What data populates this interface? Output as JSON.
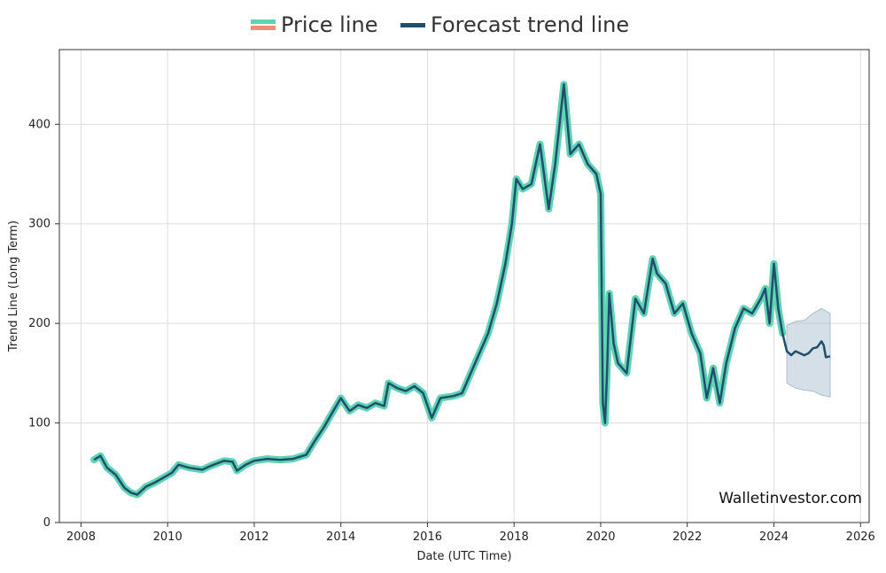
{
  "legend": {
    "price_label": "Price line",
    "forecast_label": "Forecast trend line"
  },
  "colors": {
    "price": "#5fd3b2",
    "price_alt": "#f08e74",
    "forecast": "#1f4e6e",
    "band": "#a9bfd0",
    "grid": "#dddddd",
    "axis": "#333333"
  },
  "watermark": "Walletinvestor.com",
  "chart_data": {
    "type": "line",
    "xlabel": "Date (UTC Time)",
    "ylabel": "Trend Line (Long Term)",
    "xlim": [
      2007.5,
      2026.2
    ],
    "ylim": [
      0,
      475
    ],
    "xticks": [
      2008,
      2010,
      2012,
      2014,
      2016,
      2018,
      2020,
      2022,
      2024,
      2026
    ],
    "yticks": [
      0,
      100,
      200,
      300,
      400
    ],
    "grid": true,
    "legend_position": "top-center",
    "series": [
      {
        "name": "Price line",
        "x": [
          2008.3,
          2008.45,
          2008.6,
          2008.8,
          2009.0,
          2009.15,
          2009.3,
          2009.5,
          2009.7,
          2009.9,
          2010.1,
          2010.25,
          2010.5,
          2010.8,
          2011.0,
          2011.3,
          2011.5,
          2011.6,
          2011.8,
          2012.0,
          2012.3,
          2012.6,
          2012.9,
          2013.2,
          2013.4,
          2013.6,
          2013.8,
          2014.0,
          2014.2,
          2014.4,
          2014.6,
          2014.8,
          2015.0,
          2015.1,
          2015.3,
          2015.5,
          2015.7,
          2015.9,
          2016.1,
          2016.3,
          2016.6,
          2016.8,
          2017.0,
          2017.2,
          2017.4,
          2017.6,
          2017.8,
          2017.95,
          2018.05,
          2018.2,
          2018.4,
          2018.6,
          2018.8,
          2018.95,
          2019.1,
          2019.15,
          2019.3,
          2019.5,
          2019.7,
          2019.9,
          2020.0,
          2020.05,
          2020.1,
          2020.15,
          2020.2,
          2020.3,
          2020.4,
          2020.6,
          2020.8,
          2021.0,
          2021.2,
          2021.3,
          2021.5,
          2021.7,
          2021.9,
          2022.1,
          2022.3,
          2022.45,
          2022.6,
          2022.75,
          2022.9,
          2023.1,
          2023.3,
          2023.5,
          2023.7,
          2023.8,
          2023.9,
          2024.0,
          2024.1,
          2024.2
        ],
        "y": [
          63,
          67,
          55,
          48,
          35,
          30,
          28,
          36,
          40,
          45,
          50,
          58,
          55,
          53,
          57,
          62,
          61,
          52,
          58,
          62,
          64,
          63,
          64,
          68,
          82,
          95,
          110,
          125,
          112,
          118,
          115,
          120,
          117,
          140,
          135,
          132,
          137,
          130,
          105,
          125,
          127,
          130,
          150,
          170,
          190,
          220,
          260,
          300,
          345,
          335,
          340,
          380,
          315,
          360,
          420,
          440,
          370,
          380,
          360,
          350,
          330,
          120,
          100,
          155,
          230,
          180,
          160,
          150,
          225,
          210,
          265,
          250,
          240,
          210,
          220,
          190,
          170,
          125,
          155,
          120,
          160,
          195,
          215,
          210,
          225,
          235,
          200,
          260,
          215,
          190
        ]
      },
      {
        "name": "Forecast trend line",
        "x": [
          2008.3,
          2008.45,
          2008.6,
          2008.8,
          2009.0,
          2009.15,
          2009.3,
          2009.5,
          2009.7,
          2009.9,
          2010.1,
          2010.25,
          2010.5,
          2010.8,
          2011.0,
          2011.3,
          2011.5,
          2011.6,
          2011.8,
          2012.0,
          2012.3,
          2012.6,
          2012.9,
          2013.2,
          2013.4,
          2013.6,
          2013.8,
          2014.0,
          2014.2,
          2014.4,
          2014.6,
          2014.8,
          2015.0,
          2015.1,
          2015.3,
          2015.5,
          2015.7,
          2015.9,
          2016.1,
          2016.3,
          2016.6,
          2016.8,
          2017.0,
          2017.2,
          2017.4,
          2017.6,
          2017.8,
          2017.95,
          2018.05,
          2018.2,
          2018.4,
          2018.6,
          2018.8,
          2018.95,
          2019.1,
          2019.15,
          2019.3,
          2019.5,
          2019.7,
          2019.9,
          2020.0,
          2020.05,
          2020.1,
          2020.15,
          2020.2,
          2020.3,
          2020.4,
          2020.6,
          2020.8,
          2021.0,
          2021.2,
          2021.3,
          2021.5,
          2021.7,
          2021.9,
          2022.1,
          2022.3,
          2022.45,
          2022.6,
          2022.75,
          2022.9,
          2023.1,
          2023.3,
          2023.5,
          2023.7,
          2023.8,
          2023.9,
          2024.0,
          2024.1,
          2024.2,
          2024.3,
          2024.4,
          2024.5,
          2024.6,
          2024.7,
          2024.8,
          2024.9,
          2025.0,
          2025.1,
          2025.15,
          2025.2,
          2025.3
        ],
        "y": [
          63,
          67,
          55,
          48,
          35,
          30,
          28,
          36,
          40,
          45,
          50,
          58,
          55,
          53,
          57,
          62,
          61,
          52,
          58,
          62,
          64,
          63,
          64,
          68,
          82,
          95,
          110,
          125,
          112,
          118,
          115,
          120,
          117,
          140,
          135,
          132,
          137,
          130,
          105,
          125,
          127,
          130,
          150,
          170,
          190,
          220,
          260,
          300,
          345,
          335,
          340,
          380,
          315,
          360,
          420,
          440,
          370,
          380,
          360,
          350,
          330,
          120,
          100,
          155,
          230,
          180,
          160,
          150,
          225,
          210,
          265,
          250,
          240,
          210,
          220,
          190,
          170,
          125,
          155,
          120,
          160,
          195,
          215,
          210,
          225,
          235,
          200,
          260,
          215,
          190,
          172,
          168,
          172,
          170,
          168,
          170,
          175,
          176,
          182,
          178,
          166,
          167
        ]
      }
    ],
    "forecast_band": {
      "x": [
        2024.3,
        2024.5,
        2024.7,
        2024.9,
        2025.1,
        2025.3
      ],
      "upper": [
        198,
        202,
        203,
        210,
        215,
        210
      ],
      "lower": [
        140,
        135,
        133,
        132,
        128,
        126
      ]
    }
  }
}
